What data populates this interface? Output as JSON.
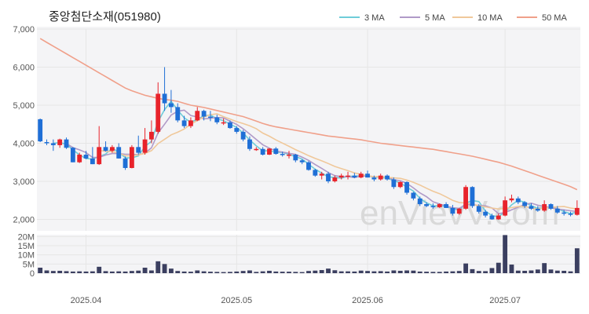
{
  "chart_data": {
    "type": "candlestick",
    "title": "중앙첨단소재(051980)",
    "watermark": "enVievV.com",
    "legend": [
      {
        "label": "3 MA",
        "color": "#6fcdd9"
      },
      {
        "label": "5 MA",
        "color": "#b09ac8"
      },
      {
        "label": "10 MA",
        "color": "#f0c89a"
      },
      {
        "label": "50 MA",
        "color": "#f0a08a"
      }
    ],
    "colors": {
      "up": "#e8232b",
      "down": "#1f6fd6",
      "volume": "#3b3f60",
      "grid": "#e6e6e6",
      "panel": "#f4f4f6"
    },
    "price_axis": {
      "min": 1700,
      "max": 7000,
      "ticks": [
        {
          "v": 2000,
          "label": "2,000"
        },
        {
          "v": 3000,
          "label": "3,000"
        },
        {
          "v": 4000,
          "label": "4,000"
        },
        {
          "v": 5000,
          "label": "5,000"
        },
        {
          "v": 6000,
          "label": "6,000"
        },
        {
          "v": 7000,
          "label": "7,000"
        }
      ]
    },
    "volume_axis": {
      "min": 0,
      "max": 21000000,
      "ticks": [
        {
          "v": 0,
          "label": "0"
        },
        {
          "v": 5000000,
          "label": "5M"
        },
        {
          "v": 10000000,
          "label": "10M"
        },
        {
          "v": 15000000,
          "label": "15M"
        },
        {
          "v": 20000000,
          "label": "20M"
        }
      ]
    },
    "x_ticks": [
      {
        "index": 7,
        "label": "2025.04"
      },
      {
        "index": 30,
        "label": "2025.05"
      },
      {
        "index": 50,
        "label": "2025.06"
      },
      {
        "index": 71,
        "label": "2025.07"
      }
    ],
    "ohlc": [
      [
        4630,
        4650,
        4030,
        4050
      ],
      [
        4030,
        4100,
        3950,
        4000
      ],
      [
        4000,
        4100,
        3800,
        3950
      ],
      [
        3950,
        4120,
        3880,
        4100
      ],
      [
        4100,
        4150,
        3850,
        3880
      ],
      [
        3880,
        3900,
        3500,
        3500
      ],
      [
        3500,
        3750,
        3480,
        3700
      ],
      [
        3700,
        3800,
        3580,
        3600
      ],
      [
        3600,
        3900,
        3450,
        3450
      ],
      [
        3450,
        4450,
        3430,
        3900
      ],
      [
        3900,
        4050,
        3780,
        3800
      ],
      [
        3800,
        3950,
        3750,
        3900
      ],
      [
        3900,
        4000,
        3600,
        3600
      ],
      [
        3600,
        3650,
        3300,
        3350
      ],
      [
        3350,
        3950,
        3340,
        3900
      ],
      [
        3900,
        4200,
        3700,
        3750
      ],
      [
        3750,
        4400,
        3700,
        4100
      ],
      [
        4100,
        4600,
        4000,
        4300
      ],
      [
        4300,
        5600,
        4250,
        5300
      ],
      [
        5300,
        6000,
        4850,
        5050
      ],
      [
        5050,
        5400,
        4800,
        4950
      ],
      [
        4950,
        5050,
        4550,
        4600
      ],
      [
        4600,
        4720,
        4400,
        4450
      ],
      [
        4450,
        4680,
        4400,
        4600
      ],
      [
        4600,
        4950,
        4580,
        4850
      ],
      [
        4850,
        4880,
        4600,
        4700
      ],
      [
        4700,
        4850,
        4580,
        4680
      ],
      [
        4680,
        4750,
        4500,
        4550
      ],
      [
        4550,
        4650,
        4480,
        4550
      ],
      [
        4550,
        4600,
        4380,
        4400
      ],
      [
        4400,
        4450,
        4250,
        4300
      ],
      [
        4300,
        4350,
        4050,
        4100
      ],
      [
        4100,
        4180,
        3800,
        3850
      ],
      [
        3850,
        3900,
        3800,
        3850
      ],
      [
        3850,
        3900,
        3680,
        3700
      ],
      [
        3700,
        3870,
        3690,
        3860
      ],
      [
        3860,
        3900,
        3700,
        3720
      ],
      [
        3720,
        3780,
        3650,
        3700
      ],
      [
        3700,
        3800,
        3600,
        3700
      ],
      [
        3700,
        3720,
        3500,
        3550
      ],
      [
        3550,
        3580,
        3450,
        3500
      ],
      [
        3500,
        3530,
        3280,
        3300
      ],
      [
        3300,
        3330,
        3120,
        3150
      ],
      [
        3150,
        3250,
        3050,
        3200
      ],
      [
        3200,
        3250,
        2950,
        3000
      ],
      [
        3000,
        3150,
        2970,
        3100
      ],
      [
        3100,
        3200,
        3050,
        3150
      ],
      [
        3150,
        3250,
        3050,
        3150
      ],
      [
        3150,
        3220,
        3080,
        3100
      ],
      [
        3100,
        3250,
        3080,
        3200
      ],
      [
        3200,
        3280,
        3100,
        3100
      ],
      [
        3100,
        3150,
        3000,
        3050
      ],
      [
        3050,
        3200,
        3020,
        3150
      ],
      [
        3150,
        3180,
        3020,
        3050
      ],
      [
        3050,
        3100,
        2800,
        2850
      ],
      [
        2850,
        3000,
        2820,
        2980
      ],
      [
        2980,
        3000,
        2650,
        2700
      ],
      [
        2700,
        2720,
        2500,
        2550
      ],
      [
        2550,
        2600,
        2350,
        2400
      ],
      [
        2400,
        2450,
        2320,
        2350
      ],
      [
        2350,
        2420,
        2280,
        2320
      ],
      [
        2320,
        2420,
        2300,
        2400
      ],
      [
        2400,
        2450,
        2300,
        2300
      ],
      [
        2300,
        2380,
        2100,
        2150
      ],
      [
        2150,
        2300,
        2120,
        2280
      ],
      [
        2280,
        2900,
        2250,
        2850
      ],
      [
        2850,
        2870,
        2300,
        2350
      ],
      [
        2350,
        2400,
        2150,
        2200
      ],
      [
        2200,
        2250,
        2050,
        2100
      ],
      [
        2100,
        2150,
        1990,
        2000
      ],
      [
        2000,
        2150,
        1990,
        2100
      ],
      [
        2100,
        2600,
        2080,
        2500
      ],
      [
        2500,
        2650,
        2450,
        2550
      ],
      [
        2550,
        2600,
        2400,
        2450
      ],
      [
        2450,
        2480,
        2300,
        2350
      ],
      [
        2350,
        2420,
        2250,
        2280
      ],
      [
        2280,
        2350,
        2200,
        2230
      ],
      [
        2230,
        2500,
        2200,
        2400
      ],
      [
        2400,
        2420,
        2250,
        2280
      ],
      [
        2280,
        2350,
        2150,
        2180
      ],
      [
        2180,
        2250,
        2100,
        2150
      ],
      [
        2150,
        2200,
        2080,
        2120
      ],
      [
        2120,
        2500,
        2100,
        2300
      ]
    ],
    "volume": [
      3000000,
      1500000,
      1200000,
      1300000,
      1100000,
      900000,
      1000000,
      900000,
      1000000,
      3500000,
      1100000,
      900000,
      1000000,
      900000,
      1200000,
      1400000,
      3000000,
      1500000,
      6500000,
      5000000,
      2500000,
      1200000,
      900000,
      800000,
      1500000,
      1000000,
      800000,
      700000,
      600000,
      700000,
      900000,
      1200000,
      1500000,
      700000,
      1000000,
      1300000,
      900000,
      800000,
      800000,
      700000,
      600000,
      1200000,
      1400000,
      1700000,
      2500000,
      1600000,
      1000000,
      1000000,
      900000,
      1400000,
      1200000,
      1000000,
      1100000,
      900000,
      1500000,
      1300000,
      1500000,
      1400000,
      900000,
      800000,
      700000,
      700000,
      900000,
      1000000,
      1200000,
      5300000,
      2200000,
      1200000,
      1100000,
      2800000,
      5700000,
      20800000,
      4700000,
      1400000,
      1300000,
      1500000,
      2000000,
      5500000,
      2000000,
      1400000,
      1300000,
      1000000,
      13600000
    ],
    "ma50": [
      6750,
      6650,
      6550,
      6450,
      6350,
      6250,
      6150,
      6050,
      5950,
      5850,
      5750,
      5650,
      5550,
      5450,
      5380,
      5320,
      5260,
      5220,
      5180,
      5150,
      5130,
      5100,
      5050,
      5000,
      4970,
      4940,
      4900,
      4860,
      4820,
      4780,
      4740,
      4700,
      4640,
      4580,
      4520,
      4470,
      4430,
      4400,
      4370,
      4340,
      4310,
      4280,
      4250,
      4220,
      4190,
      4170,
      4150,
      4130,
      4110,
      4090,
      4060,
      4030,
      4000,
      3980,
      3960,
      3940,
      3920,
      3900,
      3880,
      3860,
      3840,
      3810,
      3780,
      3750,
      3720,
      3690,
      3660,
      3620,
      3580,
      3540,
      3500,
      3450,
      3400,
      3340,
      3280,
      3220,
      3160,
      3100,
      3040,
      2980,
      2920,
      2860,
      2780
    ]
  }
}
